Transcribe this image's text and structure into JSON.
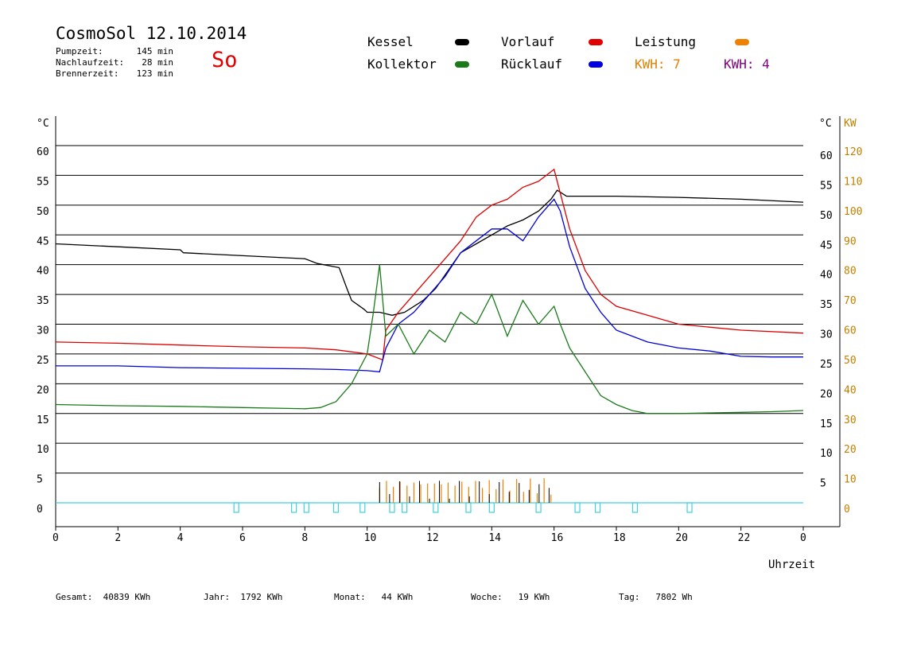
{
  "header": {
    "title": "CosmoSol 12.10.2014",
    "day": "So",
    "stats": [
      {
        "label": "Pumpzeit:",
        "value": "145 min"
      },
      {
        "label": "Nachlaufzeit:",
        "value": "28 min"
      },
      {
        "label": "Brennerzeit:",
        "value": "123 min"
      }
    ]
  },
  "legend": {
    "kessel": {
      "label": "Kessel",
      "color": "#000000"
    },
    "vorlauf": {
      "label": "Vorlauf",
      "color": "#e00000"
    },
    "leistung": {
      "label": "Leistung",
      "color": "#f08000"
    },
    "kollektor": {
      "label": "Kollektor",
      "color": "#1a7a1a"
    },
    "ruecklauf": {
      "label": "Rücklauf",
      "color": "#0000e0"
    },
    "kwh1": {
      "label": "KWH: 7",
      "color": "#e08000"
    },
    "kwh2": {
      "label": "KWH: 4",
      "color": "#800080"
    }
  },
  "footer": [
    {
      "label": "Gesamt:",
      "value": "40839 KWh"
    },
    {
      "label": "Jahr:",
      "value": "1792 KWh"
    },
    {
      "label": "Monat:",
      "value": "44 KWh"
    },
    {
      "label": "Woche:",
      "value": "19 KWh"
    },
    {
      "label": "Tag:",
      "value": "7802 Wh"
    }
  ],
  "chart_data": {
    "type": "line",
    "xlabel": "Uhrzeit",
    "ylabel_left": "°C",
    "ylabel_right_temp": "°C",
    "ylabel_right_power": "KW",
    "xlim": [
      0,
      24
    ],
    "ylim": [
      0,
      60
    ],
    "ylim_power": [
      0,
      120
    ],
    "x_ticks": [
      "0",
      "2",
      "4",
      "6",
      "8",
      "10",
      "12",
      "14",
      "16",
      "18",
      "20",
      "22",
      "0"
    ],
    "y_ticks_left": [
      "0",
      "5",
      "10",
      "15",
      "20",
      "25",
      "30",
      "35",
      "40",
      "45",
      "50",
      "55",
      "60"
    ],
    "y_ticks_right": [
      "5",
      "10",
      "15",
      "20",
      "25",
      "30",
      "35",
      "40",
      "45",
      "50",
      "55",
      "60"
    ],
    "y_ticks_power": [
      "0",
      "10",
      "20",
      "30",
      "40",
      "50",
      "60",
      "70",
      "80",
      "90",
      "100",
      "110",
      "120"
    ],
    "grid": true,
    "colors": {
      "kessel": "#000000",
      "vorlauf": "#dd0000",
      "ruecklauf": "#0000dd",
      "kollektor": "#1a7a1a",
      "leistung": "#f08000",
      "pump": "#40d0e0",
      "axis_power": "#c08000"
    },
    "series": [
      {
        "key": "kessel",
        "x": [
          0,
          2,
          4,
          4.1,
          6,
          8,
          8.4,
          9.1,
          9.35,
          9.5,
          9.9,
          10,
          10.4,
          10.8,
          11.2,
          11.8,
          12.2,
          12.6,
          13,
          13.5,
          14,
          14.5,
          15,
          15.5,
          15.9,
          16.1,
          16.4,
          18,
          20,
          22,
          24
        ],
        "y": [
          43.5,
          43,
          42.5,
          42,
          41.5,
          41,
          40.2,
          39.5,
          36,
          34,
          32.5,
          32,
          32,
          31.5,
          32,
          34,
          36,
          39,
          42,
          43.5,
          45,
          46.5,
          47.5,
          49,
          51,
          52.5,
          51.5,
          51.5,
          51.3,
          51,
          50.5
        ]
      },
      {
        "key": "vorlauf",
        "x": [
          0,
          2,
          4,
          6,
          8,
          9,
          10,
          10.5,
          10.6,
          11,
          11.5,
          12,
          12.5,
          13,
          13.5,
          14,
          14.5,
          15,
          15.5,
          16,
          16.2,
          16.5,
          17,
          17.5,
          18,
          19,
          20,
          22,
          24
        ],
        "y": [
          27,
          26.8,
          26.5,
          26.2,
          26,
          25.7,
          25,
          24,
          29,
          32,
          35,
          38,
          41,
          44,
          48,
          50,
          51,
          53,
          54,
          56,
          52,
          46,
          39,
          35,
          33,
          31.5,
          30,
          29,
          28.5
        ]
      },
      {
        "key": "ruecklauf",
        "x": [
          0,
          2,
          4,
          6,
          8,
          9,
          10,
          10.4,
          10.6,
          11,
          11.5,
          12,
          12.5,
          13,
          13.5,
          14,
          14.5,
          15,
          15.5,
          16,
          16.2,
          16.5,
          17,
          17.5,
          18,
          19,
          20,
          21,
          22,
          23,
          24
        ],
        "y": [
          23,
          23,
          22.7,
          22.6,
          22.5,
          22.4,
          22.2,
          22,
          26,
          30,
          32,
          35,
          38,
          42,
          44,
          46,
          46,
          44,
          48,
          51,
          49,
          43,
          36,
          32,
          29,
          27,
          26,
          25.5,
          24.6,
          24.5,
          24.5
        ]
      },
      {
        "key": "kollektor",
        "x": [
          0,
          2,
          4,
          6,
          8,
          8.5,
          9,
          9.5,
          10,
          10.2,
          10.4,
          10.6,
          11,
          11.5,
          12,
          12.5,
          13,
          13.5,
          14,
          14.5,
          15,
          15.5,
          16,
          16.2,
          16.5,
          17,
          17.5,
          18,
          18.5,
          19,
          20,
          21,
          22,
          23,
          24
        ],
        "y": [
          16.5,
          16.3,
          16.2,
          16,
          15.8,
          16,
          17,
          20,
          25,
          32,
          40,
          28,
          30,
          25,
          29,
          27,
          32,
          30,
          35,
          28,
          34,
          30,
          33,
          30,
          26,
          22,
          18,
          16.5,
          15.5,
          15,
          15,
          15.1,
          15.2,
          15.3,
          15.5
        ]
      }
    ]
  }
}
